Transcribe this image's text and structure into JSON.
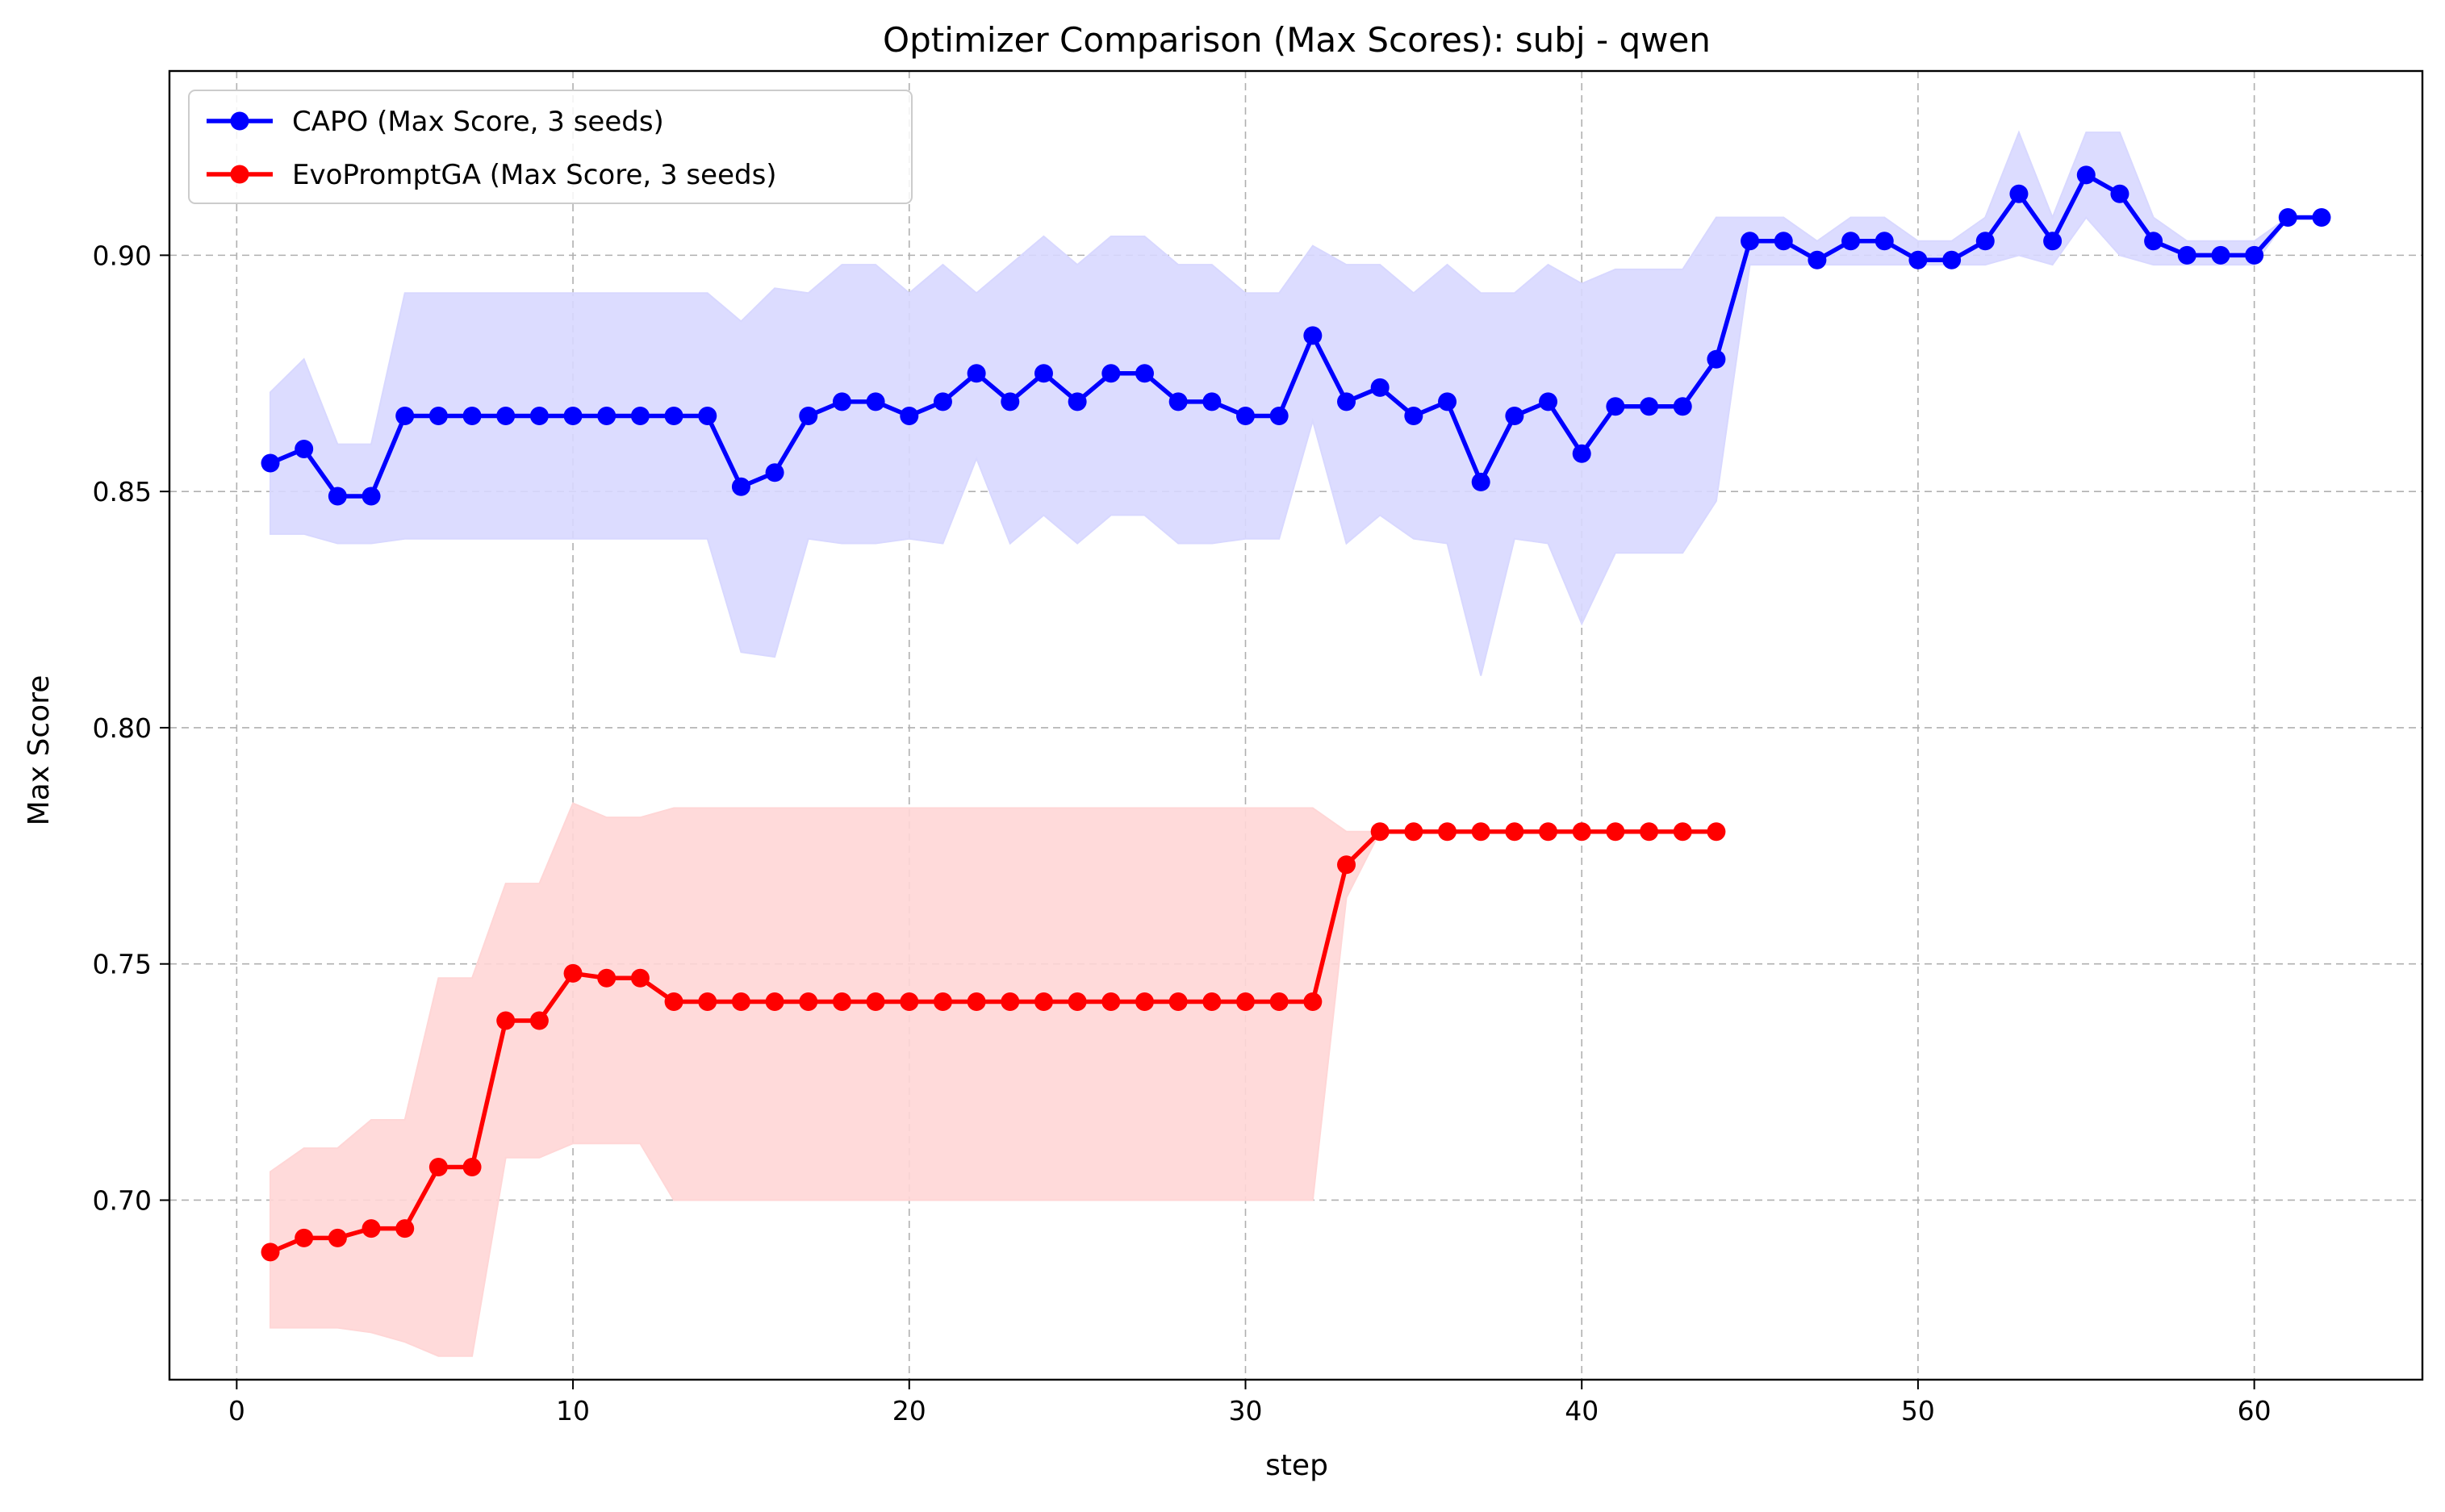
{
  "chart_data": {
    "type": "line",
    "title": "Optimizer Comparison (Max Scores): subj - qwen",
    "xlabel": "step",
    "ylabel": "Max Score",
    "xlim": [
      -2,
      65
    ],
    "ylim": [
      0.662,
      0.939
    ],
    "xticks": [
      0,
      10,
      20,
      30,
      40,
      50,
      60
    ],
    "xtick_labels": [
      "0",
      "10",
      "20",
      "30",
      "40",
      "50",
      "60"
    ],
    "yticks": [
      0.7,
      0.75,
      0.8,
      0.85,
      0.9
    ],
    "ytick_labels": [
      "0.70",
      "0.75",
      "0.80",
      "0.85",
      "0.90"
    ],
    "grid": true,
    "legend_position": "top-left",
    "series": [
      {
        "name": "CAPO (Max Score, 3 seeds)",
        "color": "#0000ff",
        "band_color": "#d8d8ff",
        "x": [
          1,
          2,
          3,
          4,
          5,
          6,
          7,
          8,
          9,
          10,
          11,
          12,
          13,
          14,
          15,
          16,
          17,
          18,
          19,
          20,
          21,
          22,
          23,
          24,
          25,
          26,
          27,
          28,
          29,
          30,
          31,
          32,
          33,
          34,
          35,
          36,
          37,
          38,
          39,
          40,
          41,
          42,
          43,
          44,
          45,
          46,
          47,
          48,
          49,
          50,
          51,
          52,
          53,
          54,
          55,
          56,
          57,
          58,
          59,
          60,
          61,
          62
        ],
        "values": [
          0.856,
          0.859,
          0.849,
          0.849,
          0.866,
          0.866,
          0.866,
          0.866,
          0.866,
          0.866,
          0.866,
          0.866,
          0.866,
          0.866,
          0.851,
          0.854,
          0.866,
          0.869,
          0.869,
          0.866,
          0.869,
          0.875,
          0.869,
          0.875,
          0.869,
          0.875,
          0.875,
          0.869,
          0.869,
          0.866,
          0.866,
          0.883,
          0.869,
          0.872,
          0.866,
          0.869,
          0.852,
          0.866,
          0.869,
          0.858,
          0.868,
          0.868,
          0.868,
          0.878,
          0.903,
          0.903,
          0.899,
          0.903,
          0.903,
          0.899,
          0.899,
          0.903,
          0.913,
          0.903,
          0.917,
          0.913,
          0.903,
          0.9,
          0.9,
          0.9,
          0.908,
          0.908
        ],
        "upper": [
          0.871,
          0.878,
          0.86,
          0.86,
          0.892,
          0.892,
          0.892,
          0.892,
          0.892,
          0.892,
          0.892,
          0.892,
          0.892,
          0.892,
          0.886,
          0.893,
          0.892,
          0.898,
          0.898,
          0.892,
          0.898,
          0.892,
          0.898,
          0.904,
          0.898,
          0.904,
          0.904,
          0.898,
          0.898,
          0.892,
          0.892,
          0.902,
          0.898,
          0.898,
          0.892,
          0.898,
          0.892,
          0.892,
          0.898,
          0.894,
          0.897,
          0.897,
          0.897,
          0.908,
          0.908,
          0.908,
          0.903,
          0.908,
          0.908,
          0.903,
          0.903,
          0.908,
          0.926,
          0.908,
          0.926,
          0.926,
          0.908,
          0.903,
          0.903,
          0.903,
          0.908,
          0.908
        ],
        "lower": [
          0.841,
          0.841,
          0.839,
          0.839,
          0.84,
          0.84,
          0.84,
          0.84,
          0.84,
          0.84,
          0.84,
          0.84,
          0.84,
          0.84,
          0.816,
          0.815,
          0.84,
          0.839,
          0.839,
          0.84,
          0.839,
          0.857,
          0.839,
          0.845,
          0.839,
          0.845,
          0.845,
          0.839,
          0.839,
          0.84,
          0.84,
          0.865,
          0.839,
          0.845,
          0.84,
          0.839,
          0.811,
          0.84,
          0.839,
          0.822,
          0.837,
          0.837,
          0.837,
          0.848,
          0.898,
          0.898,
          0.898,
          0.898,
          0.898,
          0.898,
          0.898,
          0.898,
          0.9,
          0.898,
          0.908,
          0.9,
          0.898,
          0.898,
          0.898,
          0.898,
          0.908,
          0.908
        ]
      },
      {
        "name": "EvoPromptGA (Max Score, 3 seeds)",
        "color": "#ff0000",
        "band_color": "#ffd6d6",
        "x": [
          1,
          2,
          3,
          4,
          5,
          6,
          7,
          8,
          9,
          10,
          11,
          12,
          13,
          14,
          15,
          16,
          17,
          18,
          19,
          20,
          21,
          22,
          23,
          24,
          25,
          26,
          27,
          28,
          29,
          30,
          31,
          32,
          33,
          34,
          35,
          36,
          37,
          38,
          39,
          40,
          41,
          42,
          43,
          44
        ],
        "values": [
          0.689,
          0.692,
          0.692,
          0.694,
          0.694,
          0.707,
          0.707,
          0.738,
          0.738,
          0.748,
          0.747,
          0.747,
          0.742,
          0.742,
          0.742,
          0.742,
          0.742,
          0.742,
          0.742,
          0.742,
          0.742,
          0.742,
          0.742,
          0.742,
          0.742,
          0.742,
          0.742,
          0.742,
          0.742,
          0.742,
          0.742,
          0.742,
          0.771,
          0.778,
          0.778,
          0.778,
          0.778,
          0.778,
          0.778,
          0.778,
          0.778,
          0.778,
          0.778,
          0.778
        ],
        "upper": [
          0.706,
          0.711,
          0.711,
          0.717,
          0.717,
          0.747,
          0.747,
          0.767,
          0.767,
          0.784,
          0.781,
          0.781,
          0.783,
          0.783,
          0.783,
          0.783,
          0.783,
          0.783,
          0.783,
          0.783,
          0.783,
          0.783,
          0.783,
          0.783,
          0.783,
          0.783,
          0.783,
          0.783,
          0.783,
          0.783,
          0.783,
          0.783,
          0.778,
          0.778,
          0.778,
          0.778,
          0.778,
          0.778,
          0.778,
          0.778,
          0.778,
          0.778,
          0.778,
          0.778
        ],
        "lower": [
          0.673,
          0.673,
          0.673,
          0.672,
          0.67,
          0.667,
          0.667,
          0.709,
          0.709,
          0.712,
          0.712,
          0.712,
          0.7,
          0.7,
          0.7,
          0.7,
          0.7,
          0.7,
          0.7,
          0.7,
          0.7,
          0.7,
          0.7,
          0.7,
          0.7,
          0.7,
          0.7,
          0.7,
          0.7,
          0.7,
          0.7,
          0.7,
          0.764,
          0.778,
          0.778,
          0.778,
          0.778,
          0.778,
          0.778,
          0.778,
          0.778,
          0.778,
          0.778,
          0.778
        ]
      }
    ]
  }
}
